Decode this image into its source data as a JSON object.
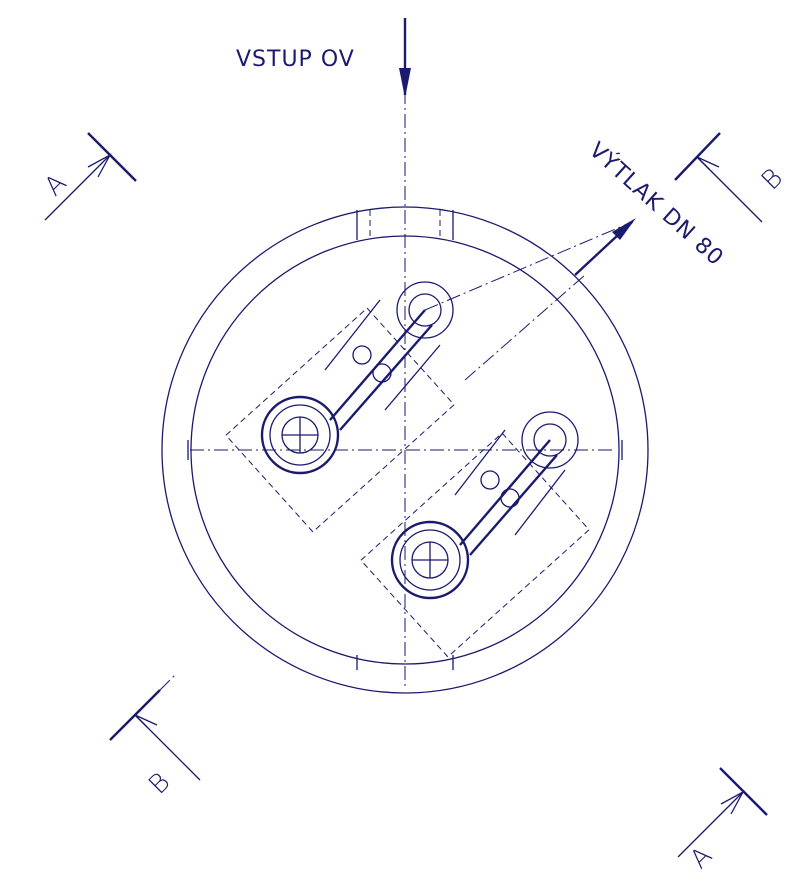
{
  "labels": {
    "inlet": "VSTUP OV",
    "outlet": "VÝTLAK DN 80"
  },
  "section_marks": [
    "A",
    "B",
    "B",
    "A"
  ]
}
